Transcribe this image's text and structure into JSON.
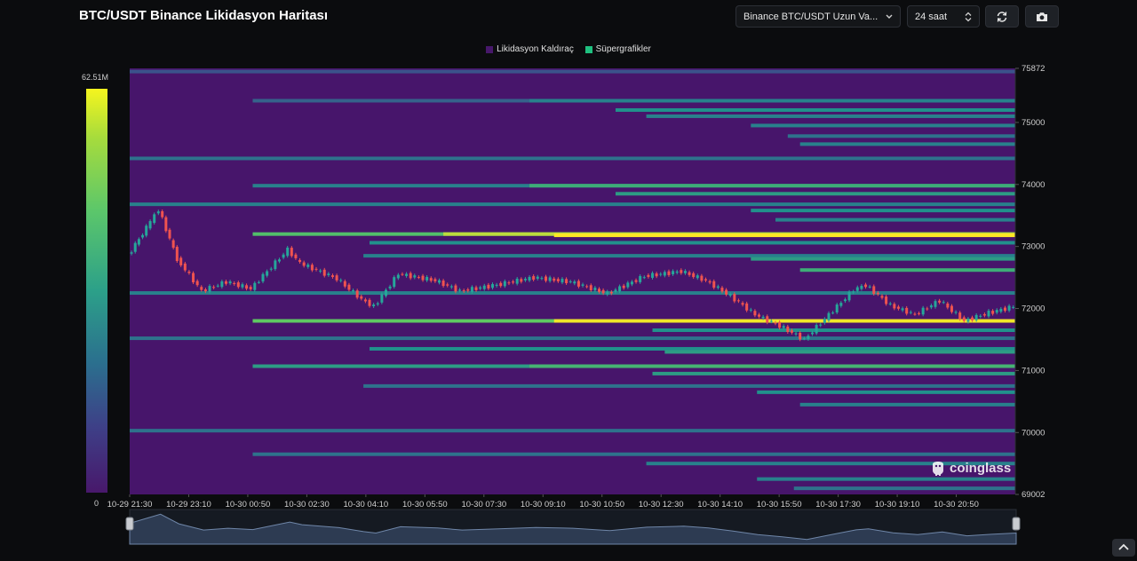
{
  "title": "BTC/USDT Binance Likidasyon Haritası",
  "controls": {
    "pair_select": "Binance BTC/USDT Uzun Va...",
    "range_select": "24 saat",
    "icons": [
      "refresh-icon",
      "camera-icon",
      "chevron-down-icon",
      "stepper-icon"
    ]
  },
  "legend": [
    {
      "label": "Likidasyon Kaldıraç",
      "color": "#47186b"
    },
    {
      "label": "Süpergrafikler",
      "color": "#1fc07f"
    }
  ],
  "scale": {
    "max_label": "62.51M",
    "min_label": "0"
  },
  "watermark": "coinglass",
  "colors": {
    "background": "#0b0c0e",
    "heatmap_base": "#47156b",
    "candle_up": "#26a69a",
    "candle_down": "#ef5350"
  },
  "chart_data": {
    "type": "heatmap",
    "title": "BTC/USDT Binance Likidasyon Haritası",
    "x_ticks": [
      "10-29 21:30",
      "10-29 23:10",
      "10-30 00:50",
      "10-30 02:30",
      "10-30 04:10",
      "10-30 05:50",
      "10-30 07:30",
      "10-30 09:10",
      "10-30 10:50",
      "10-30 12:30",
      "10-30 14:10",
      "10-30 15:50",
      "10-30 17:30",
      "10-30 19:10",
      "10-30 20:50"
    ],
    "y_ticks": [
      75872,
      75000,
      74000,
      73000,
      72000,
      71000,
      70000,
      69002
    ],
    "ylim": [
      69002,
      75872
    ],
    "xlim": [
      "10-29 21:30",
      "10-30 21:30"
    ],
    "color_scale": {
      "min": 0,
      "max": "62.51M",
      "colors": [
        "#47156b",
        "#3b528b",
        "#21918c",
        "#5ec962",
        "#fde725"
      ]
    },
    "price_series": {
      "name": "BTC/USDT",
      "x": [
        "10-29 21:30",
        "10-29 22:00",
        "10-29 22:20",
        "10-29 22:50",
        "10-29 23:30",
        "10-30 00:10",
        "10-30 00:50",
        "10-30 01:50",
        "10-30 02:10",
        "10-30 03:10",
        "10-30 03:50",
        "10-30 04:10",
        "10-30 04:50",
        "10-30 05:50",
        "10-30 06:30",
        "10-30 07:30",
        "10-30 08:30",
        "10-30 09:30",
        "10-30 10:30",
        "10-30 11:30",
        "10-30 12:30",
        "10-30 13:10",
        "10-30 13:50",
        "10-30 14:30",
        "10-30 15:10",
        "10-30 15:50",
        "10-30 16:30",
        "10-30 17:10",
        "10-30 17:30",
        "10-30 18:10",
        "10-30 18:50",
        "10-30 19:30",
        "10-30 20:10",
        "10-30 20:50",
        "10-30 21:30"
      ],
      "close": [
        72850,
        73300,
        73600,
        72800,
        72280,
        72430,
        72320,
        72950,
        72730,
        72480,
        72150,
        72030,
        72560,
        72450,
        72280,
        72380,
        72500,
        72430,
        72240,
        72520,
        72600,
        72450,
        72200,
        71900,
        71720,
        71500,
        71900,
        72300,
        72380,
        72050,
        71900,
        72130,
        71800,
        71930,
        72030
      ]
    },
    "bands": [
      {
        "price": 75820,
        "start": "10-29 21:30",
        "intensity": 0.3
      },
      {
        "price": 75350,
        "start": "10-30 00:50",
        "intensity": 0.35
      },
      {
        "price": 75350,
        "start": "10-30 08:20",
        "intensity": 0.45
      },
      {
        "price": 75200,
        "start": "10-30 10:40",
        "intensity": 0.5
      },
      {
        "price": 75100,
        "start": "10-30 11:30",
        "intensity": 0.45
      },
      {
        "price": 74950,
        "start": "10-30 14:20",
        "intensity": 0.45
      },
      {
        "price": 74780,
        "start": "10-30 15:20",
        "intensity": 0.4
      },
      {
        "price": 74650,
        "start": "10-30 15:40",
        "intensity": 0.45
      },
      {
        "price": 74420,
        "start": "10-29 21:30",
        "intensity": 0.4
      },
      {
        "price": 73980,
        "start": "10-30 00:50",
        "intensity": 0.45
      },
      {
        "price": 73980,
        "start": "10-30 08:20",
        "intensity": 0.62
      },
      {
        "price": 73850,
        "start": "10-30 10:40",
        "intensity": 0.55
      },
      {
        "price": 73680,
        "start": "10-29 21:30",
        "intensity": 0.45
      },
      {
        "price": 73580,
        "start": "10-30 14:20",
        "intensity": 0.5
      },
      {
        "price": 73430,
        "start": "10-30 15:00",
        "intensity": 0.45
      },
      {
        "price": 73200,
        "start": "10-30 00:50",
        "intensity": 0.7
      },
      {
        "price": 73200,
        "start": "10-30 06:00",
        "intensity": 0.9
      },
      {
        "price": 73180,
        "start": "10-30 09:00",
        "intensity": 1.0
      },
      {
        "price": 73060,
        "start": "10-30 04:00",
        "intensity": 0.5
      },
      {
        "price": 72850,
        "start": "10-30 03:50",
        "intensity": 0.45
      },
      {
        "price": 72800,
        "start": "10-30 14:20",
        "intensity": 0.55
      },
      {
        "price": 72620,
        "start": "10-30 15:40",
        "intensity": 0.62
      },
      {
        "price": 72250,
        "start": "10-29 21:30",
        "intensity": 0.45
      },
      {
        "price": 71800,
        "start": "10-30 00:50",
        "intensity": 0.75
      },
      {
        "price": 71800,
        "start": "10-30 09:00",
        "intensity": 0.98
      },
      {
        "price": 71650,
        "start": "10-30 11:40",
        "intensity": 0.5
      },
      {
        "price": 71520,
        "start": "10-29 21:30",
        "intensity": 0.4
      },
      {
        "price": 71350,
        "start": "10-30 04:00",
        "intensity": 0.5
      },
      {
        "price": 71300,
        "start": "10-30 12:00",
        "intensity": 0.55
      },
      {
        "price": 71070,
        "start": "10-30 00:50",
        "intensity": 0.55
      },
      {
        "price": 71070,
        "start": "10-30 08:20",
        "intensity": 0.65
      },
      {
        "price": 70950,
        "start": "10-30 11:40",
        "intensity": 0.55
      },
      {
        "price": 70750,
        "start": "10-30 03:50",
        "intensity": 0.4
      },
      {
        "price": 70650,
        "start": "10-30 14:30",
        "intensity": 0.5
      },
      {
        "price": 70450,
        "start": "10-30 15:40",
        "intensity": 0.45
      },
      {
        "price": 70030,
        "start": "10-29 21:30",
        "intensity": 0.4
      },
      {
        "price": 69650,
        "start": "10-30 00:50",
        "intensity": 0.4
      },
      {
        "price": 69500,
        "start": "10-30 11:30",
        "intensity": 0.45
      },
      {
        "price": 69250,
        "start": "10-30 14:30",
        "intensity": 0.45
      },
      {
        "price": 69100,
        "start": "10-30 15:30",
        "intensity": 0.4
      }
    ]
  }
}
